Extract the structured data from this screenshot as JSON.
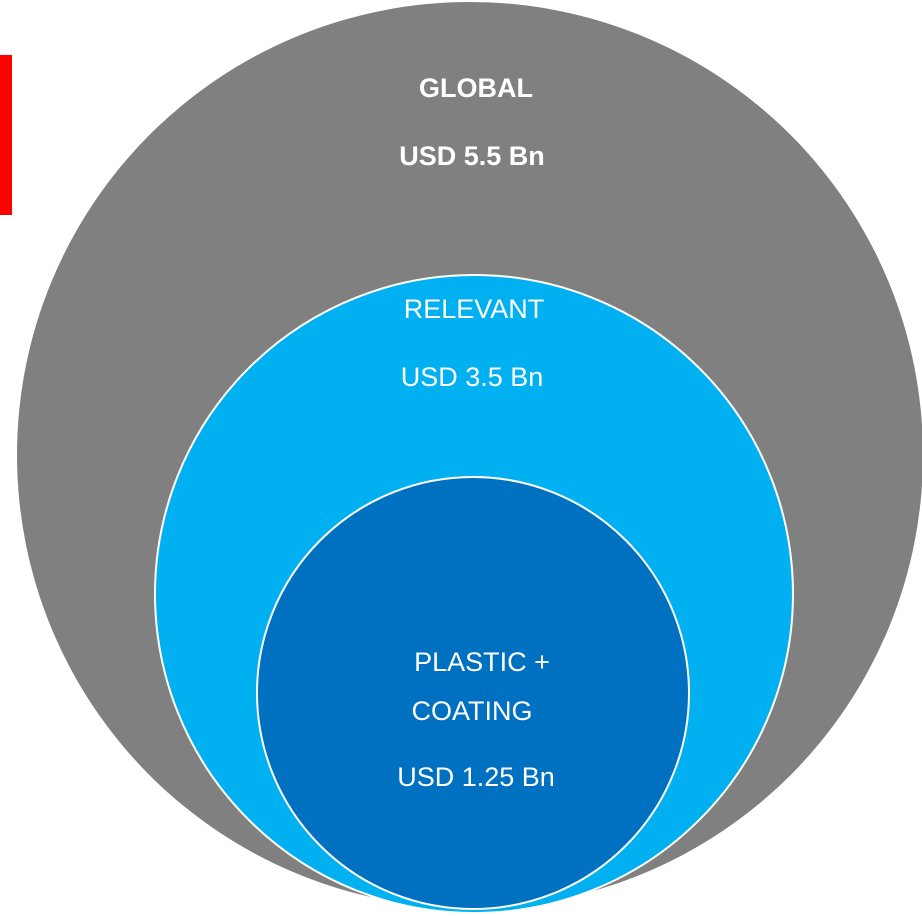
{
  "nodes": [
    {
      "label": "GLOBAL",
      "value": "USD 5.5 Bn"
    },
    {
      "label": "RELEVANT",
      "value": "USD 3.5 Bn"
    },
    {
      "label": [
        "PLASTIC +",
        "COATING"
      ],
      "value": "USD 1.25 Bn"
    }
  ]
}
